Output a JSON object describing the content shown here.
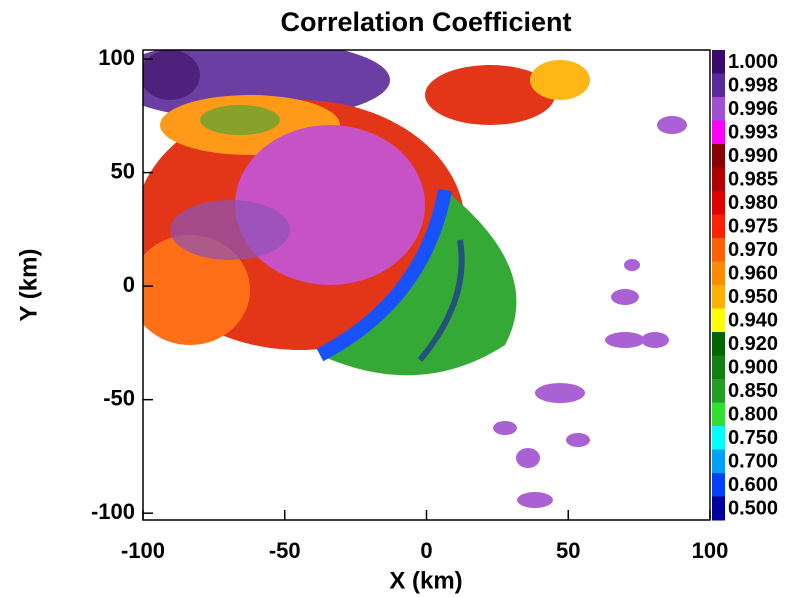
{
  "chart_data": {
    "type": "radar-field",
    "title": "Correlation Coefficient",
    "x_label": "X (km)",
    "y_label": "Y (km)",
    "xlim": [
      -100,
      100
    ],
    "ylim": [
      -103,
      104
    ],
    "xticks": [
      -100,
      -50,
      0,
      50,
      100
    ],
    "yticks": [
      100,
      50,
      0,
      -50,
      -100
    ],
    "colorbar": {
      "levels": [
        {
          "value": 1.0,
          "label": "1.000"
        },
        {
          "value": 0.998,
          "label": "0.998"
        },
        {
          "value": 0.996,
          "label": "0.996"
        },
        {
          "value": 0.993,
          "label": "0.993"
        },
        {
          "value": 0.99,
          "label": "0.990"
        },
        {
          "value": 0.985,
          "label": "0.985"
        },
        {
          "value": 0.98,
          "label": "0.980"
        },
        {
          "value": 0.975,
          "label": "0.975"
        },
        {
          "value": 0.97,
          "label": "0.970"
        },
        {
          "value": 0.96,
          "label": "0.960"
        },
        {
          "value": 0.95,
          "label": "0.950"
        },
        {
          "value": 0.94,
          "label": "0.940"
        },
        {
          "value": 0.92,
          "label": "0.920"
        },
        {
          "value": 0.9,
          "label": "0.900"
        },
        {
          "value": 0.85,
          "label": "0.850"
        },
        {
          "value": 0.8,
          "label": "0.800"
        },
        {
          "value": 0.75,
          "label": "0.750"
        },
        {
          "value": 0.7,
          "label": "0.700"
        },
        {
          "value": 0.6,
          "label": "0.600"
        },
        {
          "value": 0.5,
          "label": "0.500"
        }
      ],
      "colors": [
        "#3a0a6e",
        "#5b2a9a",
        "#a050d0",
        "#ff00ff",
        "#8b0000",
        "#b00000",
        "#e00000",
        "#ff2000",
        "#ff6000",
        "#ff8c00",
        "#ffb000",
        "#ffff00",
        "#006400",
        "#108010",
        "#20a020",
        "#30e030",
        "#00ffff",
        "#00a0ff",
        "#0040ff",
        "#0000a0"
      ]
    }
  }
}
